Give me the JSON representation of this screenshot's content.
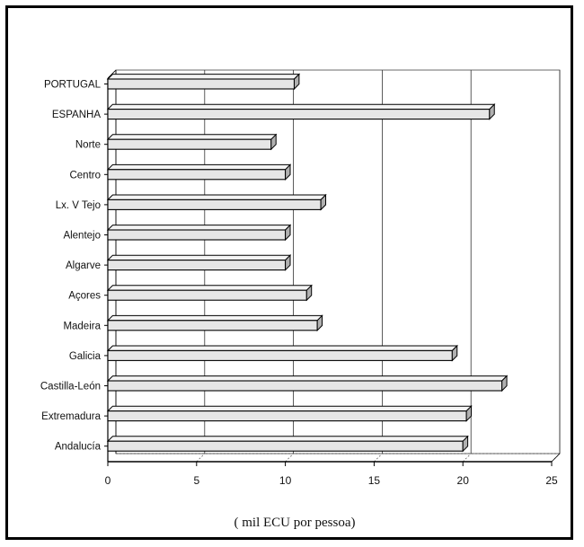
{
  "chart_data": {
    "type": "bar",
    "orientation": "horizontal",
    "style": "3d",
    "categories": [
      "PORTUGAL",
      "ESPANHA",
      "Norte",
      "Centro",
      "Lx. V Tejo",
      "Alentejo",
      "Algarve",
      "Açores",
      "Madeira",
      "Galicia",
      "Castilla-León",
      "Extremadura",
      "Andalucía"
    ],
    "values": [
      10.5,
      21.5,
      9.2,
      10.0,
      12.0,
      10.0,
      10.0,
      11.2,
      11.8,
      19.4,
      22.2,
      20.2,
      20.0
    ],
    "xlim": [
      0,
      25
    ],
    "xticks": [
      0,
      5,
      10,
      15,
      20,
      25
    ],
    "xlabel": "( mil ECU por pessoa)",
    "ylabel": "",
    "title": "",
    "grid": "vertical",
    "legend": "none",
    "colors": {
      "bar_fill": "#e6e6e6",
      "bar_top": "#f4f4f4",
      "bar_side": "#b0b0b0",
      "outline": "#000000"
    }
  }
}
